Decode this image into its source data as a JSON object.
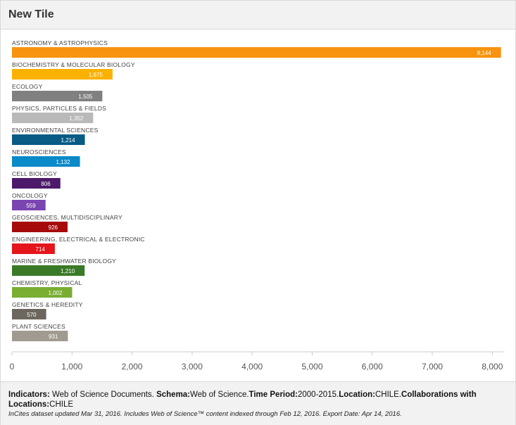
{
  "tile": {
    "title": "New Tile"
  },
  "chart_data": {
    "type": "bar",
    "orientation": "horizontal",
    "categories": [
      "ASTRONOMY & ASTROPHYSICS",
      "BIOCHEMISTRY & MOLECULAR BIOLOGY",
      "ECOLOGY",
      "PHYSICS, PARTICLES & FIELDS",
      "ENVIRONMENTAL SCIENCES",
      "NEUROSCIENCES",
      "CELL BIOLOGY",
      "ONCOLOGY",
      "GEOSCIENCES, MULTIDISCIPLINARY",
      "ENGINEERING, ELECTRICAL & ELECTRONIC",
      "MARINE & FRESHWATER BIOLOGY",
      "CHEMISTRY, PHYSICAL",
      "GENETICS & HEREDITY",
      "PLANT SCIENCES"
    ],
    "values": [
      8144,
      1675,
      1505,
      1352,
      1214,
      1132,
      806,
      559,
      926,
      714,
      1210,
      1002,
      570,
      931
    ],
    "value_labels": [
      "8,144",
      "1,675",
      "1,505",
      "1,352",
      "1,214",
      "1,132",
      "806",
      "559",
      "926",
      "714",
      "1,210",
      "1,002",
      "570",
      "931"
    ],
    "colors": [
      "#f7930f",
      "#fbb100",
      "#808080",
      "#b9b9b9",
      "#075b85",
      "#0a8ac8",
      "#4d1a6b",
      "#7a45b0",
      "#a60a0a",
      "#e4161b",
      "#3a7a27",
      "#79ae32",
      "#6d665f",
      "#a09a91"
    ],
    "xlim": [
      0,
      8200
    ],
    "xticks": [
      0,
      1000,
      2000,
      3000,
      4000,
      5000,
      6000,
      7000,
      8000
    ],
    "xtick_labels": [
      "0",
      "1,000",
      "2,000",
      "3,000",
      "4,000",
      "5,000",
      "6,000",
      "7,000",
      "8,000"
    ],
    "grid": false,
    "legend": "none"
  },
  "footer": {
    "indicators_label": "Indicators:",
    "indicators_value": " Web of Science Documents. ",
    "schema_label": "Schema:",
    "schema_value": "Web of Science.",
    "period_label": "Time Period:",
    "period_value": "2000-2015.",
    "location_label": "Location:",
    "location_value": "CHILE.",
    "collab_label": "Collaborations with Locations:",
    "collab_value": "CHILE",
    "note": "InCites dataset updated Mar 31, 2016. Includes Web of Science™ content indexed through Feb 12, 2016. Export Date: Apr 14, 2016."
  }
}
